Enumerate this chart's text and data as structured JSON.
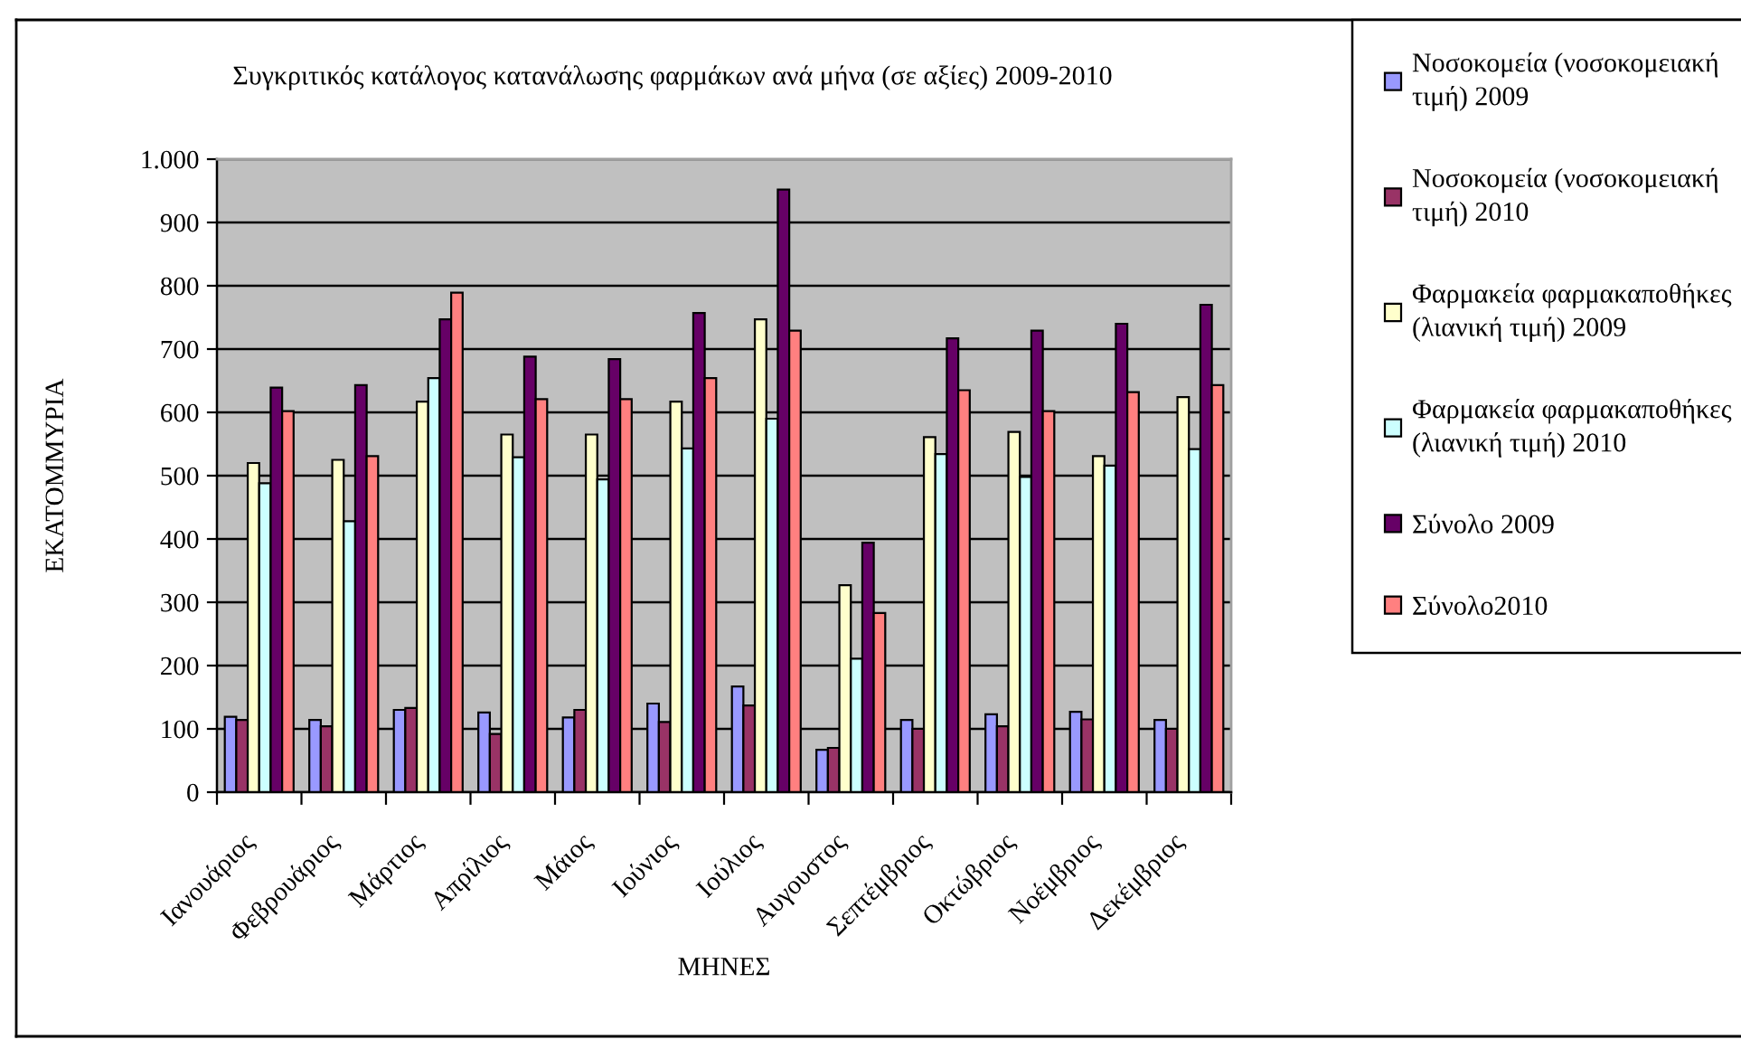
{
  "chart_data": {
    "type": "bar",
    "title": "Συγκριτικός κατάλογος κατανάλωσης φαρμάκων ανά μήνα (σε αξίες) 2009-2010",
    "xlabel": "ΜΗΝΕΣ",
    "ylabel": "ΕΚΑΤΟΜΜΥΡΙΑ",
    "categories": [
      "Ιανουάριος",
      "Φεβρουάριος",
      "Μάρτιος",
      "Απρίλιος",
      "Μάιος",
      "Ιούνιος",
      "Ιούλιος",
      "Αυγουστος",
      "Σεπτέμβριος",
      "Οκτώβριος",
      "Νοέμβριος",
      "Δεκέμβριος"
    ],
    "series": [
      {
        "name": "Νοσοκομεία (νοσοκομειακή τιμή) 2009",
        "color": "#9999ff",
        "values": [
          119,
          114,
          130,
          126,
          118,
          140,
          167,
          67,
          114,
          123,
          127,
          114
        ]
      },
      {
        "name": "Νοσοκομεία (νοσοκομειακή τιμή) 2010",
        "color": "#993366",
        "values": [
          114,
          104,
          133,
          92,
          130,
          111,
          137,
          70,
          100,
          104,
          115,
          100
        ]
      },
      {
        "name": "Φαρμακεία φαρμακαποθήκες (λιανική τιμή) 2009",
        "color": "#ffffcc",
        "values": [
          520,
          525,
          617,
          565,
          565,
          617,
          747,
          327,
          561,
          569,
          531,
          624
        ]
      },
      {
        "name": "Φαρμακεία φαρμακαποθήκες (λιανική τιμή) 2010",
        "color": "#ccffff",
        "values": [
          488,
          428,
          654,
          529,
          494,
          543,
          590,
          211,
          534,
          498,
          516,
          542
        ]
      },
      {
        "name": "Σύνολο 2009",
        "color": "#660066",
        "values": [
          639,
          643,
          747,
          688,
          684,
          757,
          952,
          394,
          717,
          729,
          740,
          770
        ]
      },
      {
        "name": "Σύνολο2010",
        "color": "#ff8080",
        "values": [
          602,
          531,
          789,
          621,
          621,
          654,
          729,
          283,
          635,
          602,
          632,
          643
        ]
      }
    ],
    "ylim": [
      0,
      1000
    ],
    "yticks": [
      0,
      100,
      200,
      300,
      400,
      500,
      600,
      700,
      800,
      900,
      {
        "value": 1000,
        "label": "1.000"
      }
    ],
    "grid": "y",
    "legend": "right"
  }
}
